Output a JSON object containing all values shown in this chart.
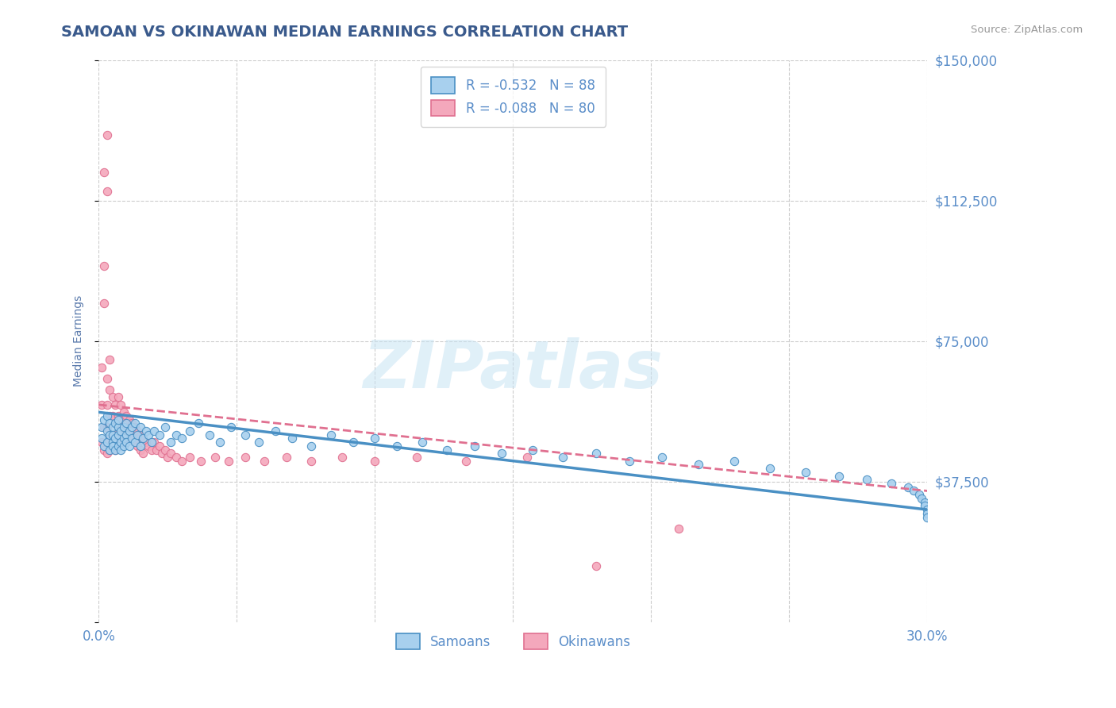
{
  "title": "SAMOAN VS OKINAWAN MEDIAN EARNINGS CORRELATION CHART",
  "source": "Source: ZipAtlas.com",
  "ylabel": "Median Earnings",
  "xmin": 0.0,
  "xmax": 0.3,
  "ymin": 0,
  "ymax": 150000,
  "yticks": [
    0,
    37500,
    75000,
    112500,
    150000
  ],
  "ytick_labels": [
    "",
    "$37,500",
    "$75,000",
    "$112,500",
    "$150,000"
  ],
  "xticks": [
    0.0,
    0.05,
    0.1,
    0.15,
    0.2,
    0.25,
    0.3
  ],
  "xtick_labels": [
    "0.0%",
    "",
    "",
    "",
    "",
    "",
    "30.0%"
  ],
  "samoan_R": -0.532,
  "samoan_N": 88,
  "okinawan_R": -0.088,
  "okinawan_N": 80,
  "samoan_color": "#A8D0EE",
  "okinawan_color": "#F4A8BC",
  "samoan_line_color": "#4A90C4",
  "okinawan_line_color": "#E07090",
  "title_color": "#3A5A8C",
  "axis_label_color": "#5A7AAC",
  "tick_label_color": "#5B8EC9",
  "source_color": "#999999",
  "watermark_color": "#C8E4F4",
  "background_color": "#FFFFFF",
  "grid_color": "#CCCCCC",
  "legend_border_color": "#CCCCCC",
  "samoan_x": [
    0.001,
    0.001,
    0.002,
    0.002,
    0.003,
    0.003,
    0.003,
    0.004,
    0.004,
    0.004,
    0.005,
    0.005,
    0.005,
    0.005,
    0.006,
    0.006,
    0.006,
    0.007,
    0.007,
    0.007,
    0.007,
    0.008,
    0.008,
    0.008,
    0.009,
    0.009,
    0.009,
    0.01,
    0.01,
    0.01,
    0.011,
    0.011,
    0.012,
    0.012,
    0.013,
    0.013,
    0.014,
    0.015,
    0.015,
    0.016,
    0.017,
    0.018,
    0.019,
    0.02,
    0.022,
    0.024,
    0.026,
    0.028,
    0.03,
    0.033,
    0.036,
    0.04,
    0.044,
    0.048,
    0.053,
    0.058,
    0.064,
    0.07,
    0.077,
    0.084,
    0.092,
    0.1,
    0.108,
    0.117,
    0.126,
    0.136,
    0.146,
    0.157,
    0.168,
    0.18,
    0.192,
    0.204,
    0.217,
    0.23,
    0.243,
    0.256,
    0.268,
    0.278,
    0.287,
    0.293,
    0.295,
    0.297,
    0.298,
    0.299,
    0.299,
    0.3,
    0.3,
    0.3
  ],
  "samoan_y": [
    52000,
    49000,
    54000,
    47000,
    51000,
    48000,
    55000,
    50000,
    46000,
    53000,
    52000,
    48000,
    50000,
    47000,
    53000,
    49000,
    46000,
    52000,
    50000,
    47000,
    54000,
    51000,
    48000,
    46000,
    52000,
    49000,
    47000,
    53000,
    50000,
    48000,
    51000,
    47000,
    52000,
    49000,
    53000,
    48000,
    50000,
    52000,
    47000,
    49000,
    51000,
    50000,
    48000,
    51000,
    50000,
    52000,
    48000,
    50000,
    49000,
    51000,
    53000,
    50000,
    48000,
    52000,
    50000,
    48000,
    51000,
    49000,
    47000,
    50000,
    48000,
    49000,
    47000,
    48000,
    46000,
    47000,
    45000,
    46000,
    44000,
    45000,
    43000,
    44000,
    42000,
    43000,
    41000,
    40000,
    39000,
    38000,
    37000,
    36000,
    35000,
    34000,
    33000,
    32000,
    31000,
    30000,
    29000,
    28000
  ],
  "okinawan_x": [
    0.001,
    0.001,
    0.001,
    0.002,
    0.002,
    0.002,
    0.002,
    0.002,
    0.003,
    0.003,
    0.003,
    0.003,
    0.003,
    0.003,
    0.003,
    0.004,
    0.004,
    0.004,
    0.004,
    0.004,
    0.005,
    0.005,
    0.005,
    0.005,
    0.006,
    0.006,
    0.006,
    0.006,
    0.007,
    0.007,
    0.007,
    0.007,
    0.008,
    0.008,
    0.008,
    0.009,
    0.009,
    0.009,
    0.01,
    0.01,
    0.01,
    0.011,
    0.011,
    0.012,
    0.012,
    0.013,
    0.013,
    0.014,
    0.014,
    0.015,
    0.015,
    0.016,
    0.016,
    0.017,
    0.018,
    0.019,
    0.02,
    0.021,
    0.022,
    0.023,
    0.024,
    0.025,
    0.026,
    0.028,
    0.03,
    0.033,
    0.037,
    0.042,
    0.047,
    0.053,
    0.06,
    0.068,
    0.077,
    0.088,
    0.1,
    0.115,
    0.133,
    0.155,
    0.18,
    0.21
  ],
  "okinawan_y": [
    58000,
    68000,
    48000,
    95000,
    85000,
    120000,
    52000,
    46000,
    130000,
    115000,
    65000,
    58000,
    52000,
    48000,
    45000,
    70000,
    62000,
    55000,
    50000,
    46000,
    60000,
    55000,
    50000,
    47000,
    58000,
    53000,
    49000,
    46000,
    60000,
    55000,
    51000,
    47000,
    58000,
    54000,
    50000,
    56000,
    52000,
    48000,
    55000,
    51000,
    48000,
    54000,
    50000,
    53000,
    49000,
    52000,
    48000,
    51000,
    47000,
    50000,
    46000,
    49000,
    45000,
    48000,
    47000,
    46000,
    48000,
    46000,
    47000,
    45000,
    46000,
    44000,
    45000,
    44000,
    43000,
    44000,
    43000,
    44000,
    43000,
    44000,
    43000,
    44000,
    43000,
    44000,
    43000,
    44000,
    43000,
    44000,
    15000,
    25000
  ]
}
